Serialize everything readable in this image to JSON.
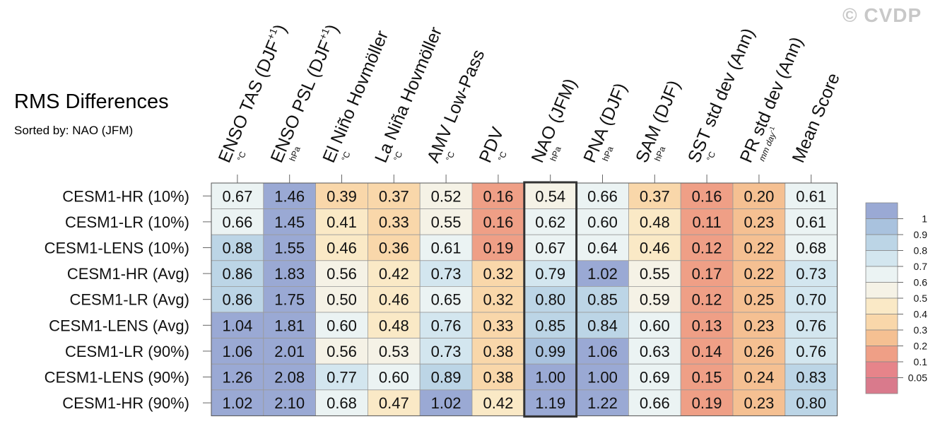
{
  "watermark": "© CVDP",
  "chart_data": {
    "type": "heatmap",
    "title": "RMS Differences",
    "subtitle": "Sorted by: NAO (JFM)",
    "columns": [
      {
        "label": "ENSO TAS (DJF",
        "sup": "+1",
        "close": ")",
        "unit": "°C"
      },
      {
        "label": "ENSO PSL (DJF",
        "sup": "+1",
        "close": ")",
        "unit": "hPa"
      },
      {
        "label": "El Niño Hovmöller",
        "unit": "°C"
      },
      {
        "label": "La Niña Hovmöller",
        "unit": "°C"
      },
      {
        "label": "AMV Low-Pass",
        "unit": "°C"
      },
      {
        "label": "PDV",
        "unit": "°C"
      },
      {
        "label": "NAO (JFM)",
        "unit": "hPa"
      },
      {
        "label": "PNA (DJF)",
        "unit": "hPa"
      },
      {
        "label": "SAM (DJF)",
        "unit": "hPa"
      },
      {
        "label": "SST std dev (Ann)",
        "unit": "°C"
      },
      {
        "label": "PR std dev (Ann)",
        "unit": "mm day",
        "unit_sup": "-1"
      },
      {
        "label": "Mean Score",
        "unit": ""
      }
    ],
    "rows": [
      "CESM1-HR (10%)",
      "CESM1-LR (10%)",
      "CESM1-LENS (10%)",
      "CESM1-HR (Avg)",
      "CESM1-LR (Avg)",
      "CESM1-LENS (Avg)",
      "CESM1-LR (90%)",
      "CESM1-LENS (90%)",
      "CESM1-HR (90%)"
    ],
    "values": [
      [
        "0.67",
        "1.46",
        "0.39",
        "0.37",
        "0.52",
        "0.16",
        "0.54",
        "0.66",
        "0.37",
        "0.16",
        "0.20",
        "0.61"
      ],
      [
        "0.66",
        "1.45",
        "0.41",
        "0.33",
        "0.55",
        "0.16",
        "0.62",
        "0.60",
        "0.48",
        "0.11",
        "0.23",
        "0.61"
      ],
      [
        "0.88",
        "1.55",
        "0.46",
        "0.36",
        "0.61",
        "0.19",
        "0.67",
        "0.64",
        "0.46",
        "0.12",
        "0.22",
        "0.68"
      ],
      [
        "0.86",
        "1.83",
        "0.56",
        "0.42",
        "0.73",
        "0.32",
        "0.79",
        "1.02",
        "0.55",
        "0.17",
        "0.22",
        "0.73"
      ],
      [
        "0.86",
        "1.75",
        "0.50",
        "0.46",
        "0.65",
        "0.32",
        "0.80",
        "0.85",
        "0.59",
        "0.12",
        "0.25",
        "0.70"
      ],
      [
        "1.04",
        "1.81",
        "0.60",
        "0.48",
        "0.76",
        "0.33",
        "0.85",
        "0.84",
        "0.60",
        "0.13",
        "0.23",
        "0.76"
      ],
      [
        "1.06",
        "2.01",
        "0.56",
        "0.53",
        "0.73",
        "0.38",
        "0.99",
        "1.06",
        "0.63",
        "0.14",
        "0.26",
        "0.76"
      ],
      [
        "1.26",
        "2.08",
        "0.77",
        "0.60",
        "0.89",
        "0.38",
        "1.00",
        "1.00",
        "0.69",
        "0.15",
        "0.24",
        "0.83"
      ],
      [
        "1.02",
        "2.10",
        "0.68",
        "0.47",
        "1.02",
        "0.42",
        "1.19",
        "1.22",
        "0.66",
        "0.19",
        "0.23",
        "0.80"
      ]
    ],
    "highlighted_column": "NAO (JFM)",
    "colorbar": {
      "levels": [
        "1",
        "0.9",
        "0.8",
        "0.7",
        "0.6",
        "0.5",
        "0.4",
        "0.3",
        "0.2",
        "0.1",
        "0.05"
      ],
      "bin_colors": [
        "#9aa9d4",
        "#a9c2de",
        "#bcd5e6",
        "#d3e6ef",
        "#ebf3f3",
        "#f5f2e6",
        "#fae9c6",
        "#f9d7aa",
        "#f5c092",
        "#ef9f86",
        "#e6848a",
        "#d97a8c"
      ]
    }
  }
}
